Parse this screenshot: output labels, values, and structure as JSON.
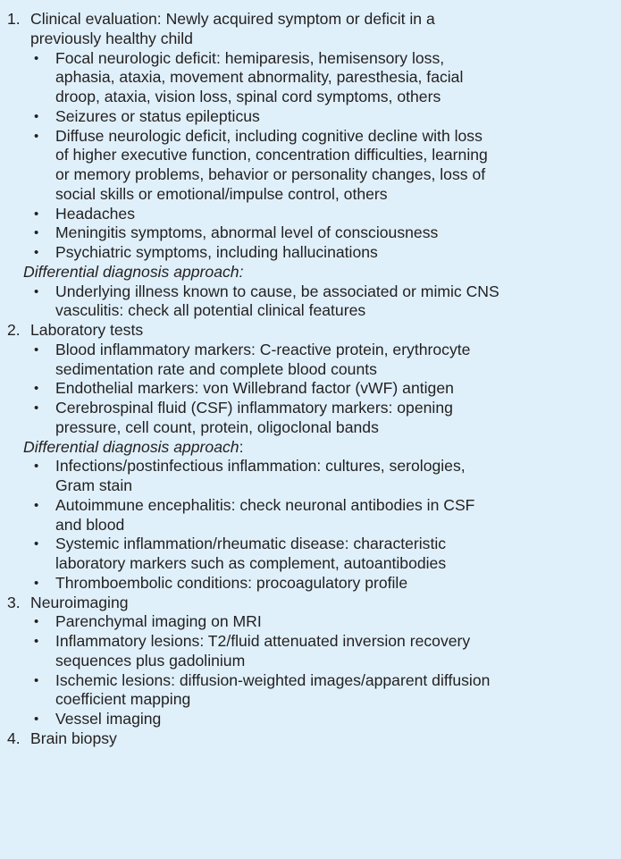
{
  "sections": [
    {
      "number": "1.",
      "heading_lines": [
        "Clinical evaluation: Newly acquired symptom or deficit in a",
        "previously healthy child"
      ],
      "bullets": [
        [
          "Focal neurologic deficit: hemiparesis, hemisensory loss,",
          "aphasia, ataxia, movement abnormality, paresthesia, facial",
          "droop, ataxia, vision loss, spinal cord symptoms, others"
        ],
        [
          "Seizures or status epilepticus"
        ],
        [
          "Diffuse neurologic deficit, including cognitive decline with loss",
          "of higher executive function, concentration difficulties, learning",
          "or memory problems, behavior or personality changes, loss of",
          "social skills or emotional/impulse control, others"
        ],
        [
          "Headaches"
        ],
        [
          "Meningitis symptoms, abnormal level of consciousness"
        ],
        [
          "Psychiatric symptoms, including hallucinations"
        ]
      ],
      "differential_label": "Differential diagnosis approach:",
      "differential_suffix": "",
      "differential_bullets": [
        [
          "Underlying illness known to cause, be associated or mimic CNS",
          "vasculitis: check all potential clinical features"
        ]
      ]
    },
    {
      "number": "2.",
      "heading_lines": [
        "Laboratory tests"
      ],
      "bullets": [
        [
          "Blood inflammatory markers: C-reactive protein, erythrocyte",
          "sedimentation rate and complete blood counts"
        ],
        [
          "Endothelial markers: von Willebrand factor (vWF) antigen"
        ],
        [
          "Cerebrospinal fluid (CSF) inflammatory markers: opening",
          "pressure, cell count, protein, oligoclonal bands"
        ]
      ],
      "differential_label": "Differential diagnosis approach",
      "differential_suffix": ":",
      "differential_bullets": [
        [
          "Infections/postinfectious inflammation: cultures, serologies,",
          "Gram stain"
        ],
        [
          "Autoimmune encephalitis: check neuronal antibodies in CSF",
          "and blood"
        ],
        [
          "Systemic inflammation/rheumatic disease: characteristic",
          "laboratory markers such as complement, autoantibodies"
        ],
        [
          "Thromboembolic conditions: procoagulatory profile"
        ]
      ]
    },
    {
      "number": "3.",
      "heading_lines": [
        "Neuroimaging"
      ],
      "bullets": [
        [
          "Parenchymal imaging on MRI"
        ],
        [
          "Inflammatory lesions: T2/fluid attenuated inversion recovery",
          "sequences plus gadolinium"
        ],
        [
          "Ischemic lesions: diffusion-weighted images/apparent diffusion",
          "coefficient mapping"
        ],
        [
          "Vessel imaging"
        ]
      ]
    },
    {
      "number": "4.",
      "heading_lines": [
        "Brain biopsy"
      ],
      "bullets": []
    }
  ]
}
